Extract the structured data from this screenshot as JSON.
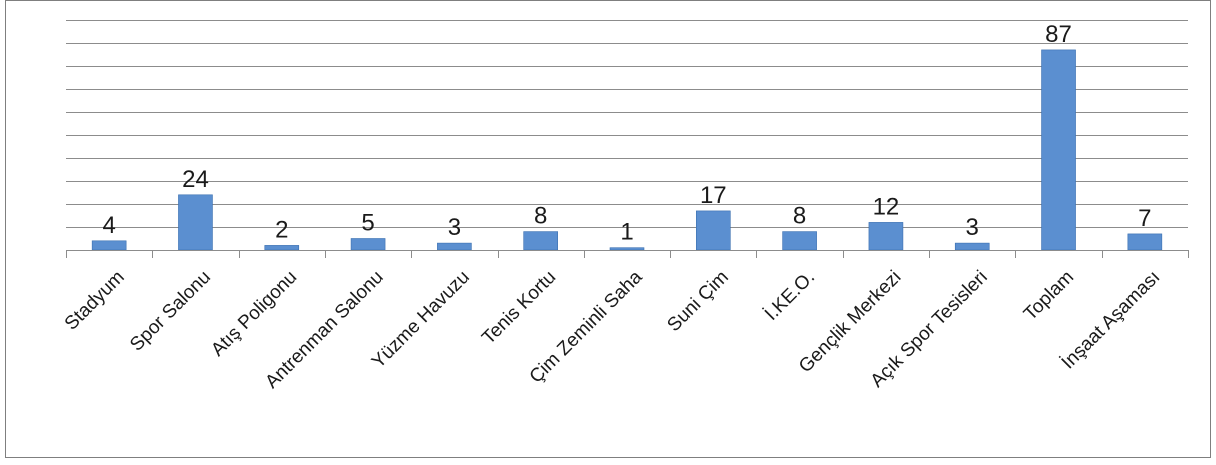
{
  "chart_data": {
    "type": "bar",
    "title": "",
    "xlabel": "",
    "ylabel": "",
    "categories": [
      "Stadyum",
      "Spor Salonu",
      "Atış Poligonu",
      "Antrenman Salonu",
      "Yüzme Havuzu",
      "Tenis Kortu",
      "Çim Zeminli Saha",
      "Suni Çim",
      "İ.KE.O.",
      "Gençlik Merkezi",
      "Açık Spor Tesisleri",
      "Toplam",
      "İnşaat Aşaması"
    ],
    "values": [
      4,
      24,
      2,
      5,
      3,
      8,
      1,
      17,
      8,
      12,
      3,
      87,
      7
    ],
    "ylim": [
      0,
      100
    ],
    "gridlines": true,
    "legend": "none",
    "bar_color": "#5B8FD0",
    "bar_edge_color": "#3A6FB0",
    "grid_color": "#8C8C8C",
    "frame_color": "#7F7F7F"
  }
}
